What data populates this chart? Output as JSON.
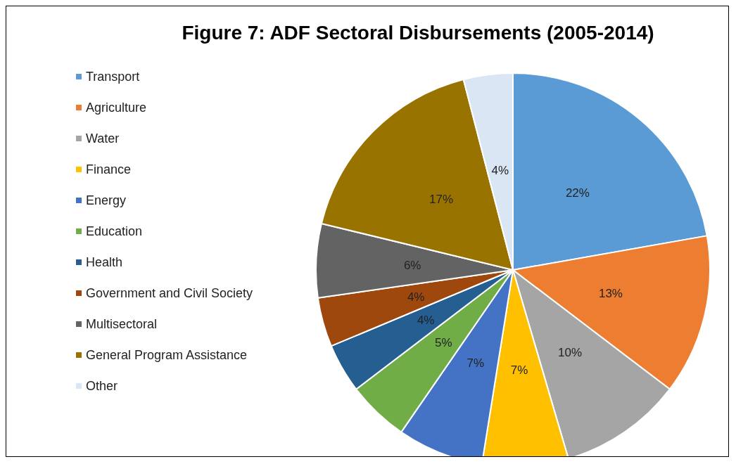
{
  "chart_data": {
    "type": "pie",
    "title": "Figure 7: ADF Sectoral Disbursements (2005-2014)",
    "categories": [
      "Transport",
      "Agriculture",
      "Water",
      "Finance",
      "Energy",
      "Education",
      "Health",
      "Government and Civil Society",
      "Multisectoral",
      "General Program Assistance",
      "Other"
    ],
    "values": [
      22,
      13,
      10,
      7,
      7,
      5,
      4,
      4,
      6,
      17,
      4
    ],
    "colors": [
      "#5b9bd5",
      "#ed7d31",
      "#a5a5a5",
      "#ffc000",
      "#4472c4",
      "#70ad47",
      "#255e91",
      "#9e480e",
      "#636363",
      "#997300",
      "#dae6f3"
    ],
    "value_labels": [
      "22%",
      "13%",
      "10%",
      "7%",
      "7%",
      "5%",
      "4%",
      "4%",
      "6%",
      "17%",
      "4%"
    ],
    "legend": "left"
  }
}
